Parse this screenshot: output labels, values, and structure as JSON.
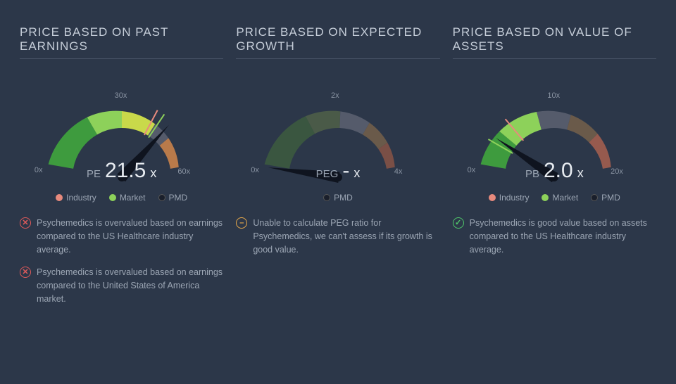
{
  "background_color": "#2c3749",
  "text_color": "#c5cdd8",
  "panels": [
    {
      "title": "PRICE BASED ON PAST EARNINGS",
      "gauge": {
        "metric_label": "PE",
        "metric_value": "21.5",
        "metric_suffix": "x",
        "tick_start": "0x",
        "tick_mid": "30x",
        "tick_end": "60x",
        "needle_angle": -48,
        "industry_angle": -62,
        "market_angle": -56,
        "arc_segments": [
          {
            "start": -170,
            "end": -120,
            "color": "#3e9b3e"
          },
          {
            "start": -120,
            "end": -90,
            "color": "#8dd15a"
          },
          {
            "start": -90,
            "end": -58,
            "color": "#c9d94a"
          },
          {
            "start": -58,
            "end": -40,
            "color": "#555b6b"
          },
          {
            "start": -40,
            "end": -10,
            "color": "#b97a4a"
          }
        ]
      },
      "legend": [
        {
          "color": "#e88a7d",
          "label": "Industry"
        },
        {
          "color": "#8dd15a",
          "label": "Market"
        },
        {
          "color": "#1a1f2b",
          "label": "PMD"
        }
      ],
      "notes": [
        {
          "type": "bad",
          "text": "Psychemedics is overvalued based on earnings compared to the US Healthcare industry average."
        },
        {
          "type": "bad",
          "text": "Psychemedics is overvalued based on earnings compared to the United States of America market."
        }
      ]
    },
    {
      "title": "PRICE BASED ON EXPECTED GROWTH",
      "gauge": {
        "metric_label": "PEG",
        "metric_value": "-",
        "metric_suffix": " x",
        "tick_start": "0x",
        "tick_mid": "2x",
        "tick_end": "4x",
        "needle_angle": -172,
        "industry_angle": null,
        "market_angle": null,
        "arc_segments": [
          {
            "start": -170,
            "end": -118,
            "color": "#3a5640"
          },
          {
            "start": -118,
            "end": -88,
            "color": "#4a5a48"
          },
          {
            "start": -88,
            "end": -60,
            "color": "#555b6b"
          },
          {
            "start": -60,
            "end": -35,
            "color": "#6a5a4a"
          },
          {
            "start": -35,
            "end": -10,
            "color": "#7a4f46"
          }
        ]
      },
      "legend": [
        {
          "color": "#1a1f2b",
          "label": "PMD"
        }
      ],
      "notes": [
        {
          "type": "neutral",
          "text": "Unable to calculate PEG ratio for Psychemedics, we can't assess if its growth is good value."
        }
      ]
    },
    {
      "title": "PRICE BASED ON VALUE OF ASSETS",
      "gauge": {
        "metric_label": "PB",
        "metric_value": "2.0",
        "metric_suffix": "x",
        "tick_start": "0x",
        "tick_mid": "10x",
        "tick_end": "20x",
        "needle_angle": -146,
        "industry_angle": -130,
        "market_angle": -150,
        "arc_segments": [
          {
            "start": -170,
            "end": -140,
            "color": "#3e9b3e"
          },
          {
            "start": -140,
            "end": -105,
            "color": "#8dd15a"
          },
          {
            "start": -105,
            "end": -75,
            "color": "#555b6b"
          },
          {
            "start": -75,
            "end": -45,
            "color": "#6a5a4a"
          },
          {
            "start": -45,
            "end": -10,
            "color": "#965a4e"
          }
        ]
      },
      "legend": [
        {
          "color": "#e88a7d",
          "label": "Industry"
        },
        {
          "color": "#8dd15a",
          "label": "Market"
        },
        {
          "color": "#1a1f2b",
          "label": "PMD"
        }
      ],
      "notes": [
        {
          "type": "good",
          "text": "Psychemedics is good value based on assets compared to the US Healthcare industry average."
        }
      ]
    }
  ]
}
